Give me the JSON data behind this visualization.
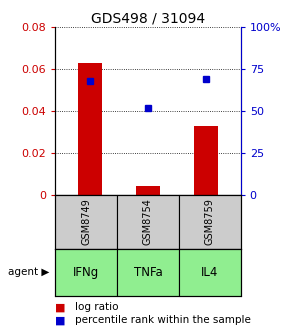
{
  "title": "GDS498 / 31094",
  "samples": [
    "GSM8749",
    "GSM8754",
    "GSM8759"
  ],
  "agents": [
    "IFNg",
    "TNFa",
    "IL4"
  ],
  "log_ratios": [
    0.063,
    0.004,
    0.033
  ],
  "percentile_ranks": [
    68,
    52,
    69
  ],
  "left_ylim": [
    0,
    0.08
  ],
  "right_ylim": [
    0,
    100
  ],
  "left_yticks": [
    0,
    0.02,
    0.04,
    0.06,
    0.08
  ],
  "right_yticks": [
    0,
    25,
    50,
    75,
    100
  ],
  "right_yticklabels": [
    "0",
    "25",
    "50",
    "75",
    "100%"
  ],
  "bar_color": "#cc0000",
  "marker_color": "#0000cc",
  "agent_bg_color": "#90ee90",
  "sample_bg_color": "#cccccc",
  "title_fontsize": 10,
  "tick_fontsize": 8,
  "label_fontsize": 8,
  "legend_fontsize": 7.5,
  "agent_label": "agent"
}
